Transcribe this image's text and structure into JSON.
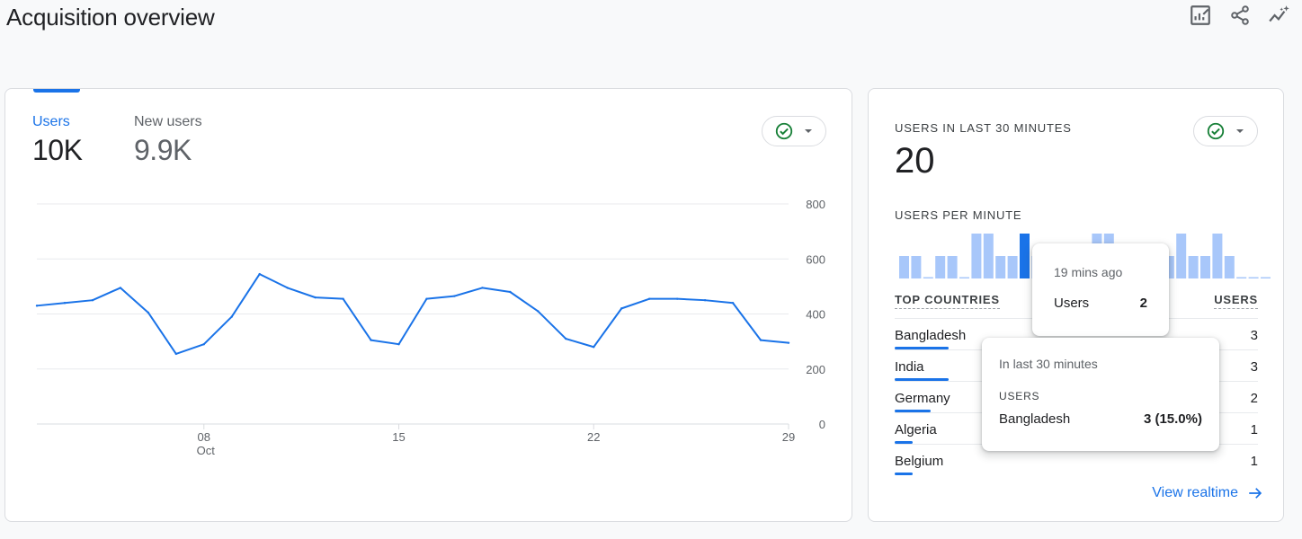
{
  "page": {
    "title": "Acquisition overview",
    "toolbar": [
      {
        "icon": "customize-report-icon"
      },
      {
        "icon": "share-icon"
      },
      {
        "icon": "insights-icon"
      }
    ]
  },
  "users_card": {
    "tabs": [
      {
        "label": "Users",
        "value": "10K",
        "active": true
      },
      {
        "label": "New users",
        "value": "9.9K",
        "active": false
      }
    ],
    "compare_icon": "check-circle-icon"
  },
  "chart_data": {
    "type": "line",
    "series": [
      {
        "name": "Users",
        "color": "#1a73e8",
        "values": [
          430,
          440,
          450,
          495,
          405,
          255,
          290,
          390,
          545,
          495,
          460,
          455,
          305,
          290,
          455,
          465,
          495,
          480,
          410,
          310,
          280,
          420,
          455,
          455,
          450,
          440,
          305,
          295
        ]
      }
    ],
    "x_tick_labels": [
      {
        "index": 6,
        "label": "08",
        "sublabel": "Oct"
      },
      {
        "index": 13,
        "label": "15",
        "sublabel": ""
      },
      {
        "index": 20,
        "label": "22",
        "sublabel": ""
      },
      {
        "index": 27,
        "label": "29",
        "sublabel": ""
      }
    ],
    "y_ticks": [
      0,
      200,
      400,
      600,
      800
    ],
    "ylim": [
      0,
      800
    ],
    "grid": true,
    "y_axis_side": "right"
  },
  "realtime_card": {
    "title": "USERS IN LAST 30 MINUTES",
    "value": "20",
    "per_minute_label": "USERS PER MINUTE",
    "per_minute": {
      "values": [
        1,
        1,
        0,
        1,
        1,
        0,
        2,
        2,
        1,
        1,
        2,
        1,
        0,
        1,
        1,
        1,
        2,
        2,
        1,
        1,
        1,
        1,
        1,
        2,
        1,
        1,
        2,
        1,
        0,
        0,
        0
      ],
      "highlight_index": 10,
      "color": "#a8c7fa",
      "highlight_color": "#1a73e8"
    },
    "top_countries_label": "TOP COUNTRIES",
    "users_col_label": "USERS",
    "countries": [
      {
        "name": "Bangladesh",
        "users": "3",
        "share": 1.0
      },
      {
        "name": "India",
        "users": "3",
        "share": 1.0
      },
      {
        "name": "Germany",
        "users": "2",
        "share": 0.67
      },
      {
        "name": "Algeria",
        "users": "1",
        "share": 0.33
      },
      {
        "name": "Belgium",
        "users": "1",
        "share": 0.33
      }
    ],
    "view_link": "View realtime",
    "view_link_icon": "arrow-right-icon"
  },
  "tooltip_bar": {
    "time": "19 mins ago",
    "label": "Users",
    "value": "2"
  },
  "tooltip_country": {
    "heading": "In last 30 minutes",
    "column": "USERS",
    "name": "Bangladesh",
    "value": "3 (15.0%)"
  }
}
